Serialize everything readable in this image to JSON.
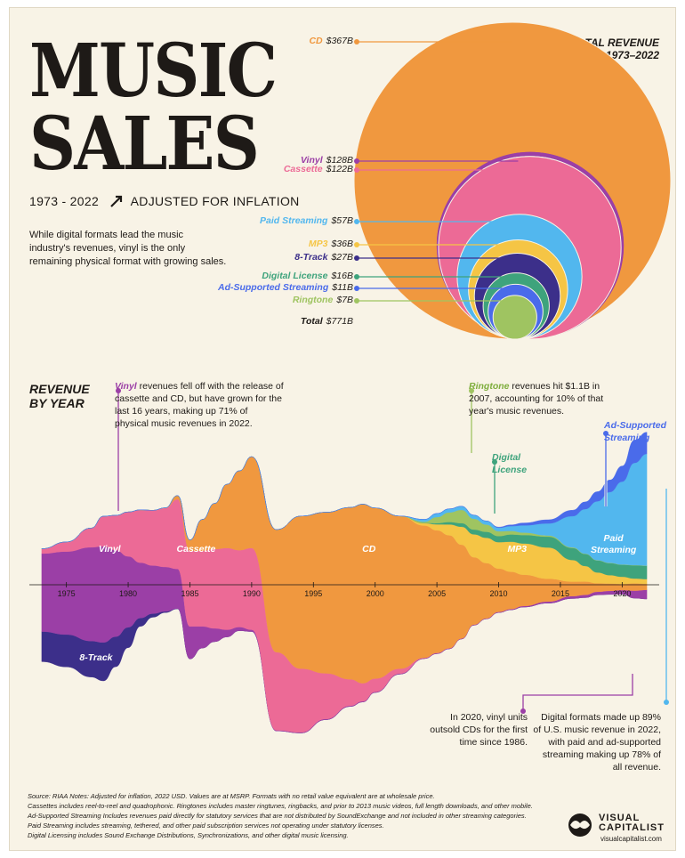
{
  "header": {
    "title_line1": "MUSIC",
    "title_line2": "SALES",
    "years": "1973 - 2022",
    "adjusted": "ADJUSTED FOR INFLATION",
    "intro": "While digital formats lead the music industry's revenues, vinyl is the only remaining physical format with growing sales."
  },
  "total_revenue": {
    "title_line1": "TOTAL REVENUE",
    "title_line2": "1973–2022",
    "total_label": "Total",
    "total_value": "$771B"
  },
  "chart_data": [
    {
      "type": "bubble",
      "title": "TOTAL REVENUE 1973–2022",
      "unit": "$B",
      "categories": [
        "CD",
        "Vinyl",
        "Cassette",
        "Paid Streaming",
        "MP3",
        "8-Track",
        "Digital License",
        "Ad-Supported Streaming",
        "Ringtone"
      ],
      "values": [
        367,
        128,
        122,
        57,
        36,
        27,
        16,
        11,
        7
      ],
      "labels": [
        "$367B",
        "$128B",
        "$122B",
        "$57B",
        "$36B",
        "$27B",
        "$16B",
        "$11B",
        "$7B"
      ],
      "colors": [
        "#f0983f",
        "#9b3fa6",
        "#ec6a96",
        "#52b7ee",
        "#f5c545",
        "#3c2f8a",
        "#3ea37c",
        "#4a6bea",
        "#9fc461"
      ],
      "total": 771
    },
    {
      "type": "area",
      "title": "REVENUE BY YEAR",
      "layout": "streamgraph",
      "x": [
        1973,
        1975,
        1977,
        1978,
        1979,
        1980,
        1981,
        1982,
        1983,
        1984,
        1985,
        1986,
        1987,
        1988,
        1989,
        1990,
        1992,
        1994,
        1996,
        1998,
        1999,
        2000,
        2002,
        2004,
        2005,
        2006,
        2007,
        2008,
        2009,
        2010,
        2011,
        2012,
        2014,
        2016,
        2017,
        2018,
        2019,
        2020,
        2021,
        2022
      ],
      "series": [
        {
          "name": "Vinyl",
          "color": "#9b3fa6",
          "values": [
            6.5,
            6.9,
            7.8,
            8.0,
            7.2,
            5.9,
            4.6,
            4.0,
            3.7,
            3.3,
            2.7,
            1.8,
            1.1,
            0.6,
            0.3,
            0.15,
            0.05,
            0.05,
            0.06,
            0.06,
            0.06,
            0.05,
            0.05,
            0.04,
            0.04,
            0.04,
            0.04,
            0.05,
            0.05,
            0.06,
            0.07,
            0.09,
            0.13,
            0.2,
            0.23,
            0.26,
            0.3,
            0.35,
            0.63,
            0.75
          ]
        },
        {
          "name": "8-Track",
          "color": "#3c2f8a",
          "values": [
            2.5,
            2.7,
            3.0,
            3.2,
            2.5,
            1.7,
            0.7,
            0.3,
            0.1,
            0.03,
            0.01,
            0,
            0,
            0,
            0,
            0,
            0,
            0,
            0,
            0,
            0,
            0,
            0,
            0,
            0,
            0,
            0,
            0,
            0,
            0,
            0,
            0,
            0,
            0,
            0,
            0,
            0,
            0,
            0,
            0
          ]
        },
        {
          "name": "Cassette",
          "color": "#ec6a96",
          "values": [
            0.4,
            0.8,
            1.6,
            2.5,
            2.9,
            3.7,
            4.4,
            4.6,
            4.9,
            5.8,
            6.3,
            6.3,
            6.6,
            6.8,
            6.4,
            6.8,
            6.5,
            5.3,
            3.8,
            2.2,
            1.5,
            1.1,
            0.4,
            0.03,
            0.02,
            0.01,
            0,
            0,
            0,
            0,
            0,
            0,
            0,
            0,
            0,
            0,
            0,
            0,
            0,
            0
          ]
        },
        {
          "name": "CD",
          "color": "#f0983f",
          "values": [
            0,
            0,
            0,
            0,
            0,
            0,
            0,
            0,
            0.02,
            0.3,
            0.9,
            2.6,
            3.8,
            5.3,
            6.6,
            7.6,
            10.2,
            12.7,
            13.4,
            14.3,
            14.9,
            14.2,
            12.7,
            11.0,
            10.2,
            9.4,
            7.8,
            5.6,
            4.6,
            3.6,
            3.1,
            2.6,
            1.9,
            1.2,
            1.1,
            0.7,
            0.6,
            0.5,
            0.6,
            0.5
          ]
        },
        {
          "name": "MP3",
          "color": "#f5c545",
          "values": [
            0,
            0,
            0,
            0,
            0,
            0,
            0,
            0,
            0,
            0,
            0,
            0,
            0,
            0,
            0,
            0,
            0,
            0,
            0,
            0,
            0,
            0,
            0,
            0.2,
            0.5,
            0.9,
            1.5,
            1.9,
            2.1,
            2.2,
            2.5,
            2.6,
            2.6,
            1.8,
            1.3,
            0.9,
            0.7,
            0.6,
            0.4,
            0.4
          ]
        },
        {
          "name": "Digital License",
          "color": "#3ea37c",
          "values": [
            0,
            0,
            0,
            0,
            0,
            0,
            0,
            0,
            0,
            0,
            0,
            0,
            0,
            0,
            0,
            0,
            0,
            0,
            0,
            0,
            0,
            0,
            0,
            0.02,
            0.1,
            0.2,
            0.3,
            0.4,
            0.5,
            0.5,
            0.6,
            0.7,
            0.9,
            1.0,
            1.0,
            1.0,
            1.0,
            1.0,
            1.1,
            1.1
          ]
        },
        {
          "name": "Ringtone",
          "color": "#9fc461",
          "values": [
            0,
            0,
            0,
            0,
            0,
            0,
            0,
            0,
            0,
            0,
            0,
            0,
            0,
            0,
            0,
            0,
            0,
            0,
            0,
            0,
            0,
            0,
            0,
            0.1,
            0.5,
            0.8,
            1.1,
            0.9,
            0.6,
            0.4,
            0.3,
            0.2,
            0.1,
            0.05,
            0.03,
            0.02,
            0.02,
            0.02,
            0.02,
            0.02
          ]
        },
        {
          "name": "Paid Streaming",
          "color": "#52b7ee",
          "values": [
            0,
            0,
            0,
            0,
            0,
            0,
            0,
            0,
            0,
            0,
            0,
            0,
            0,
            0,
            0,
            0,
            0,
            0,
            0,
            0,
            0,
            0,
            0,
            0.2,
            0.3,
            0.3,
            0.3,
            0.3,
            0.3,
            0.3,
            0.4,
            0.6,
            1.0,
            2.6,
            3.7,
            4.9,
            5.9,
            6.9,
            8.5,
            9.3
          ]
        },
        {
          "name": "Ad-Supported Streaming",
          "color": "#4a6bea",
          "values": [
            0,
            0,
            0,
            0,
            0,
            0,
            0,
            0,
            0,
            0,
            0,
            0,
            0,
            0,
            0,
            0,
            0,
            0,
            0,
            0,
            0,
            0,
            0,
            0,
            0,
            0,
            0,
            0,
            0,
            0.05,
            0.1,
            0.2,
            0.3,
            0.5,
            0.6,
            0.8,
            1.0,
            1.3,
            1.9,
            1.8
          ]
        }
      ],
      "area_labels": [
        {
          "name": "Vinyl",
          "text": "Vinyl",
          "x": 1978.5,
          "y": 0
        },
        {
          "name": "Cassette",
          "text": "Cassette",
          "x": 1985.5,
          "y": 0
        },
        {
          "name": "CD",
          "text": "CD",
          "x": 1999.5,
          "y": 0
        },
        {
          "name": "MP3",
          "text": "MP3",
          "x": 2011.5,
          "y": 0
        },
        {
          "name": "Paid Streaming",
          "text": "Paid\nStreaming",
          "x": 2019.3,
          "y": 0
        },
        {
          "name": "8-Track",
          "text": "8-Track",
          "x": 1977.4,
          "y": -4.8
        }
      ],
      "xticks": [
        1975,
        1980,
        1985,
        1990,
        1995,
        2000,
        2005,
        2010,
        2015,
        2020
      ],
      "xlim": [
        1972,
        2023
      ]
    }
  ],
  "revenue_by_year": {
    "title_line1": "REVENUE",
    "title_line2": "BY YEAR"
  },
  "annotations": {
    "vinyl_bold": "Vinyl",
    "vinyl_text": "revenues fell off with the release of cassette and CD, but have grown for the last 16 years, making up 71% of physical music revenues in 2022.",
    "ringtone_bold": "Ringtone",
    "ringtone_text": "revenues hit $1.1B in 2007, accounting for 10% of that year's music revenues.",
    "digital_license_line1": "Digital",
    "digital_license_line2": "License",
    "ad_supported_line1": "Ad-Supported",
    "ad_supported_line2": "Streaming",
    "vinyl_cds": "In 2020, vinyl units outsold CDs for the first time since 1986.",
    "digital_formats": "Digital formats made up 89% of U.S. music revenue in 2022, with paid and ad-supported streaming making up 78% of all revenue."
  },
  "footer": {
    "notes": [
      "Source: RIAA Notes: Adjusted for inflation, 2022 USD. Values are at MSRP. Formats with no retail value equivalent are at wholesale price.",
      "Cassettes includes reel-to-reel and quadrophonic. Ringtones includes master ringtunes, ringbacks, and prior to 2013 music videos, full length downloads, and other mobile.",
      "Ad-Supported Streaming Includes revenues paid directly for statutory services that are not distributed by SoundExchange and not included in other streaming categories.",
      "Paid Streaming includes streaming, tethered, and other paid subscription services not operating under statutory licenses.",
      "Digital Licensing includes Sound Exchange Distributions, Synchronizations, and other digital music licensing."
    ],
    "brand_line1": "VISUAL",
    "brand_line2": "CAPITALIST",
    "url": "visualcapitalist.com"
  }
}
